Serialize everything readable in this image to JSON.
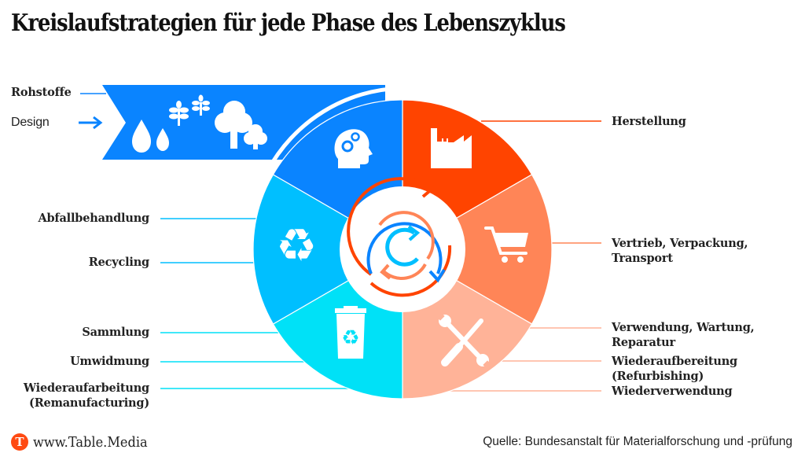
{
  "title": "Kreislaufstrategien für jede Phase des Lebenszyklus",
  "banner": {
    "label_top": "Rohstoffe",
    "label_bottom": "Design",
    "icons": [
      "water-drops-icon",
      "plant-sprouts-icon",
      "trees-icon"
    ],
    "color": "#0a84ff"
  },
  "segments": [
    {
      "name": "Herstellung",
      "icon": "factory-icon",
      "color": "#ff4400"
    },
    {
      "name": "Vertrieb",
      "icon": "shopping-cart-icon",
      "color": "#ff8557"
    },
    {
      "name": "Verwendung",
      "icon": "tools-icon",
      "color": "#ffb398"
    },
    {
      "name": "Sammlung",
      "icon": "recycling-bin-icon",
      "color": "#00e1f7"
    },
    {
      "name": "Recycling",
      "icon": "recycle-icon",
      "color": "#00bfff"
    },
    {
      "name": "Design",
      "icon": "head-gears-icon",
      "color": "#0a84ff"
    }
  ],
  "center_icon": "circular-arrows-icon",
  "labels_right": [
    {
      "text": "Herstellung",
      "line2": ""
    },
    {
      "text": "Vertrieb, Verpackung,",
      "line2": "Transport"
    },
    {
      "text": "Verwendung, Wartung,",
      "line2": "Reparatur"
    },
    {
      "text": "Wiederaufbereitung",
      "line2": "(Refurbishing)"
    },
    {
      "text": "Wiederverwendung",
      "line2": ""
    }
  ],
  "labels_left": [
    {
      "text": "Abfallbehandlung",
      "line2": ""
    },
    {
      "text": "Recycling",
      "line2": ""
    },
    {
      "text": "Sammlung",
      "line2": ""
    },
    {
      "text": "Umwidmung",
      "line2": ""
    },
    {
      "text": "Wiederaufarbeitung",
      "line2": "(Remanufacturing)"
    }
  ],
  "footer": {
    "logo_letter": "T",
    "site": "www.Table.Media",
    "source": "Quelle: Bundesanstalt für Materialforschung und -prüfung"
  }
}
